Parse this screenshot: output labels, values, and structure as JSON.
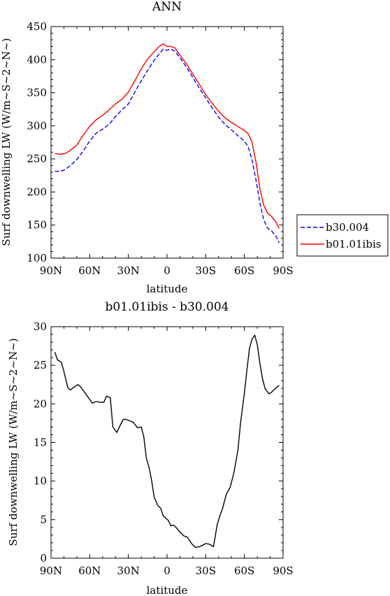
{
  "chart_data": [
    {
      "type": "line",
      "title": "ANN",
      "xlabel": "latitude",
      "ylabel": "Surf downwelling LW (W/m~S~2~N~)",
      "x_tick_labels": [
        "90N",
        "60N",
        "30N",
        "0",
        "30S",
        "60S",
        "90S"
      ],
      "x_ticks": [
        -90,
        -60,
        -30,
        0,
        30,
        60,
        90
      ],
      "xlim": [
        -90,
        90
      ],
      "ylim": [
        100,
        450
      ],
      "y_ticks": [
        100,
        150,
        200,
        250,
        300,
        350,
        400,
        450
      ],
      "x_direction": "north-to-south",
      "grid": false,
      "legend_position": "right-outside",
      "x": [
        -87,
        -83,
        -79,
        -75,
        -70,
        -65,
        -60,
        -55,
        -50,
        -45,
        -40,
        -35,
        -30,
        -25,
        -20,
        -15,
        -10,
        -6,
        -3,
        0,
        3,
        6,
        10,
        15,
        20,
        25,
        30,
        35,
        40,
        45,
        50,
        55,
        60,
        63,
        66,
        69,
        72,
        75,
        78,
        81,
        84,
        87
      ],
      "series": [
        {
          "name": "b30.004",
          "color": "#0000ff",
          "dash": "dashed",
          "values": [
            231,
            231,
            234,
            240,
            249,
            262,
            277,
            289,
            295,
            302,
            314,
            324,
            333,
            351,
            368,
            384,
            399,
            409,
            416,
            414,
            416,
            413,
            403,
            389,
            373,
            357,
            342,
            327,
            313,
            302,
            294,
            285,
            277,
            268,
            248,
            218,
            184,
            158,
            145,
            141,
            135,
            123
          ]
        },
        {
          "name": "b01.01ibis",
          "color": "#ff0000",
          "dash": "solid",
          "values": [
            258,
            257,
            258,
            263,
            271,
            286,
            299,
            309,
            316,
            324,
            333,
            340,
            351,
            368,
            386,
            401,
            412,
            420,
            424,
            420,
            420,
            418,
            407,
            394,
            378,
            363,
            347,
            334,
            322,
            312,
            305,
            299,
            293,
            288,
            275,
            245,
            205,
            180,
            168,
            163,
            156,
            145
          ]
        }
      ]
    },
    {
      "type": "line",
      "title": "b01.01ibis - b30.004",
      "xlabel": "latitude",
      "ylabel": "Surf downwelling LW (W/m~S~2~N~)",
      "x_tick_labels": [
        "90N",
        "60N",
        "30N",
        "0",
        "30S",
        "60S",
        "90S"
      ],
      "x_ticks": [
        -90,
        -60,
        -30,
        0,
        30,
        60,
        90
      ],
      "xlim": [
        -90,
        90
      ],
      "ylim": [
        0,
        30
      ],
      "y_ticks": [
        0,
        5,
        10,
        15,
        20,
        25,
        30
      ],
      "x_direction": "north-to-south",
      "grid": false,
      "x": [
        -87,
        -85,
        -82,
        -80,
        -77,
        -75,
        -72,
        -69,
        -67,
        -64,
        -61,
        -58,
        -55,
        -52,
        -49,
        -47,
        -44,
        -42,
        -39,
        -37,
        -34,
        -32,
        -29,
        -26,
        -23,
        -20,
        -18,
        -16,
        -14,
        -12,
        -10,
        -7,
        -5,
        -3,
        -1,
        1,
        3,
        5,
        7,
        10,
        13,
        16,
        19,
        22,
        25,
        28,
        30,
        33,
        36,
        39,
        41,
        43,
        46,
        49,
        52,
        55,
        57,
        60,
        62,
        64,
        66,
        68,
        70,
        72,
        74,
        76,
        79,
        81,
        84,
        87
      ],
      "series": [
        {
          "name": "",
          "color": "#000000",
          "dash": "solid",
          "values": [
            26.7,
            25.7,
            25.4,
            24.2,
            22.1,
            21.8,
            22.2,
            22.5,
            22.2,
            21.5,
            20.8,
            20.1,
            20.3,
            20.2,
            20.2,
            21.0,
            20.8,
            17.0,
            16.3,
            17.0,
            18.0,
            18.0,
            17.8,
            17.6,
            16.9,
            17.0,
            15.7,
            12.9,
            11.8,
            10.1,
            7.9,
            6.8,
            6.5,
            5.5,
            5.2,
            4.9,
            4.2,
            4.3,
            4.0,
            3.4,
            2.9,
            2.7,
            1.9,
            1.4,
            1.5,
            1.7,
            1.9,
            1.8,
            1.5,
            4.4,
            5.5,
            6.4,
            8.3,
            9.2,
            11.2,
            14.0,
            17.5,
            21.4,
            24.5,
            27.2,
            28.4,
            28.9,
            27.7,
            25.3,
            23.3,
            22.0,
            21.3,
            21.5,
            22.0,
            22.4
          ]
        }
      ]
    }
  ]
}
